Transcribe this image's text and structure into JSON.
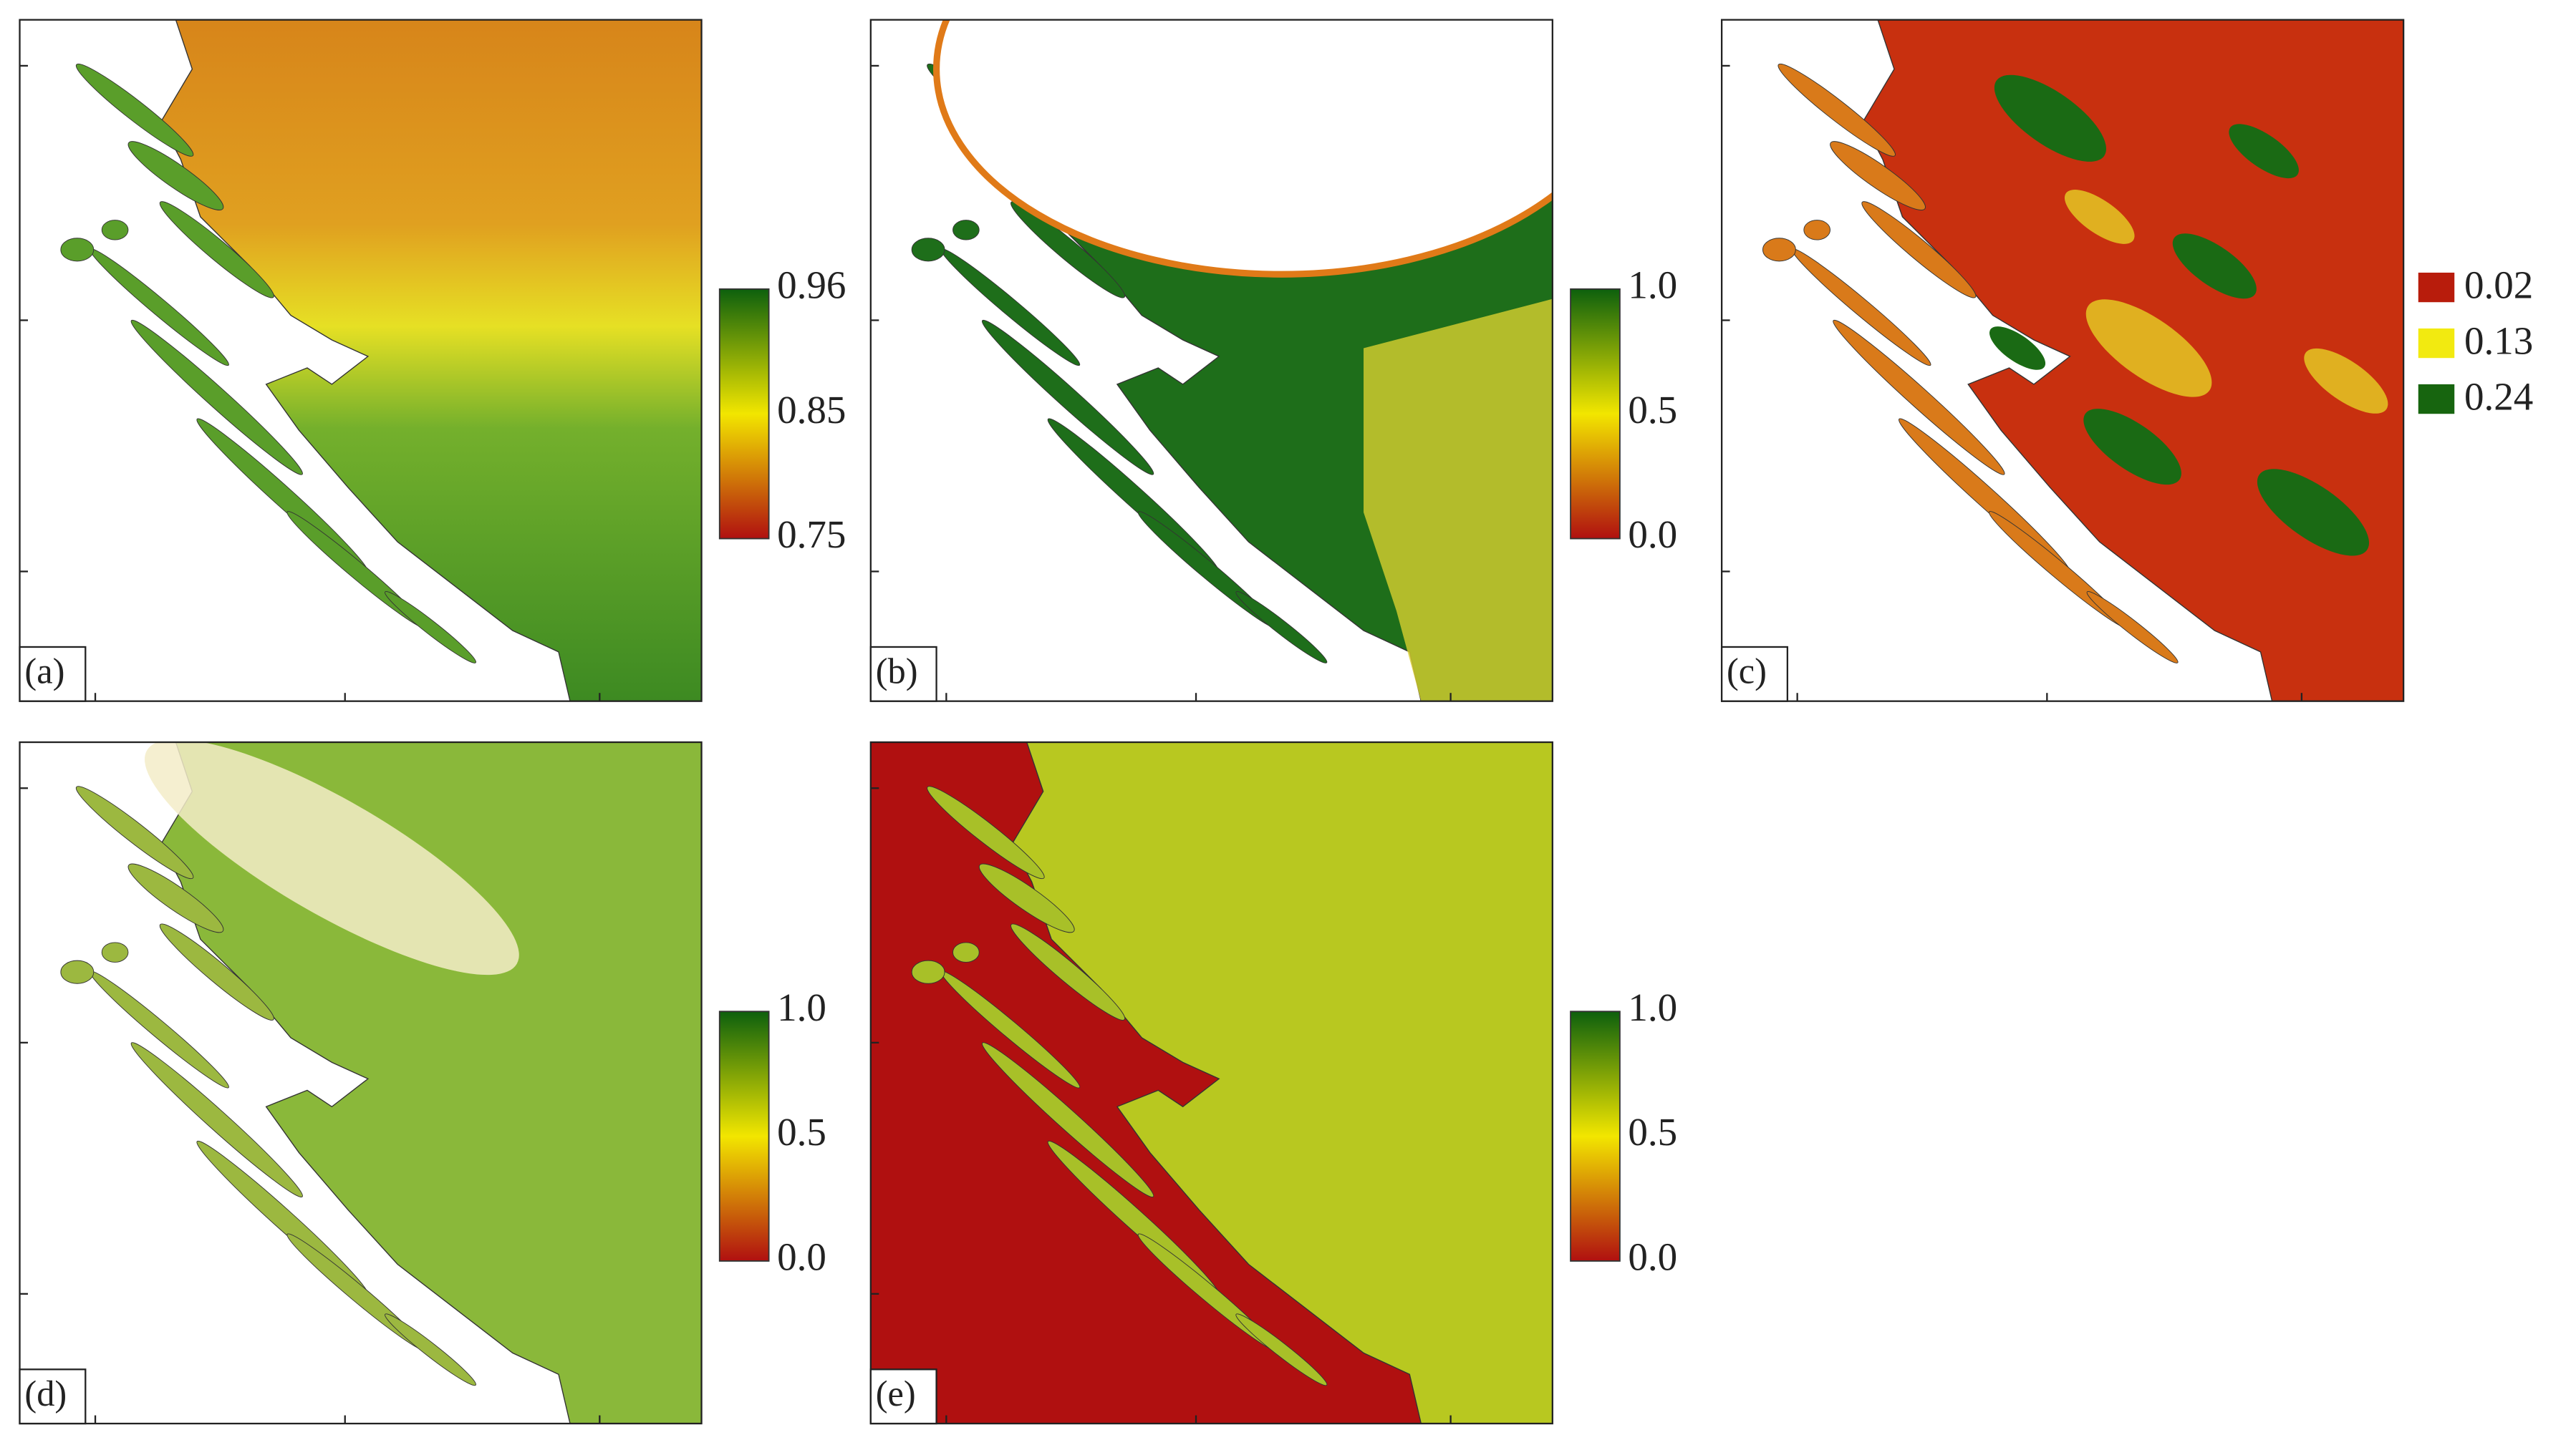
{
  "panels": [
    {
      "label": "(a)",
      "legend": {
        "kind": "colorbar",
        "labels": [
          "0.96",
          "0.85",
          "0.75"
        ]
      }
    },
    {
      "label": "(b)",
      "legend": {
        "kind": "colorbar",
        "labels": [
          "1.0",
          "0.5",
          "0.0"
        ]
      }
    },
    {
      "label": "(c)",
      "legend": {
        "kind": "classes",
        "labels": [
          "0.02",
          "0.13",
          "0.24"
        ],
        "colors": [
          "#b81c0c",
          "#f2ea10",
          "#17650f"
        ]
      }
    },
    {
      "label": "(d)",
      "legend": {
        "kind": "colorbar",
        "labels": [
          "1.0",
          "0.5",
          "0.0"
        ]
      }
    },
    {
      "label": "(e)",
      "legend": {
        "kind": "colorbar",
        "labels": [
          "1.0",
          "0.5",
          "0.0"
        ]
      }
    }
  ]
}
